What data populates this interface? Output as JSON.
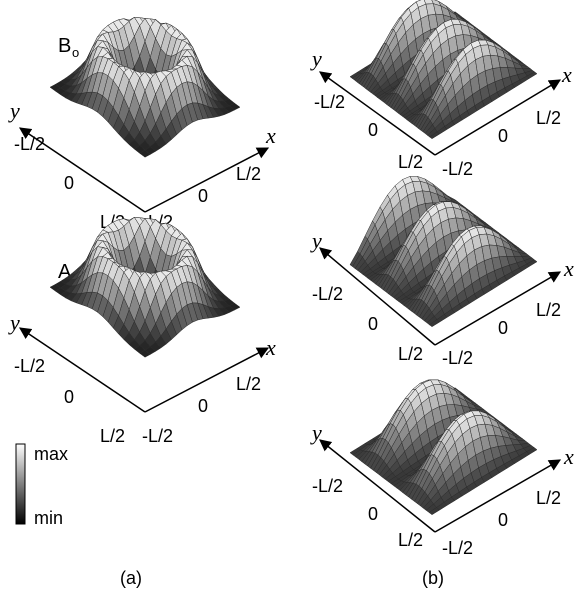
{
  "panels": {
    "a": {
      "label": "(a)",
      "plots": [
        {
          "title_main": "B",
          "title_sub": "o",
          "axis_x": "x",
          "axis_y": "y",
          "ticks_x": [
            "-L/2",
            "0",
            "L/2"
          ],
          "ticks_y": [
            "-L/2",
            "0",
            "L/2"
          ]
        },
        {
          "title_main": "A",
          "title_sub": "o",
          "axis_x": "x",
          "axis_y": "y",
          "ticks_x": [
            "-L/2",
            "0",
            "L/2"
          ],
          "ticks_y": [
            "-L/2",
            "0",
            "L/2"
          ]
        }
      ],
      "colorbar": {
        "max_label": "max",
        "min_label": "min"
      }
    },
    "b": {
      "label": "(b)",
      "plots": [
        {
          "axis_x": "x",
          "axis_y": "y",
          "ticks_x": [
            "-L/2",
            "0",
            "L/2"
          ],
          "ticks_y": [
            "-L/2",
            "0",
            "L/2"
          ]
        },
        {
          "axis_x": "x",
          "axis_y": "y",
          "ticks_x": [
            "-L/2",
            "0",
            "L/2"
          ],
          "ticks_y": [
            "-L/2",
            "0",
            "L/2"
          ]
        },
        {
          "axis_x": "x",
          "axis_y": "y",
          "ticks_x": [
            "-L/2",
            "0",
            "L/2"
          ],
          "ticks_y": [
            "-L/2",
            "0",
            "L/2"
          ]
        }
      ]
    }
  },
  "colors": {
    "surface_light": "#f2f2f2",
    "surface_dark": "#141414",
    "mesh_line": "#2a2a2a",
    "axis": "#000000"
  }
}
